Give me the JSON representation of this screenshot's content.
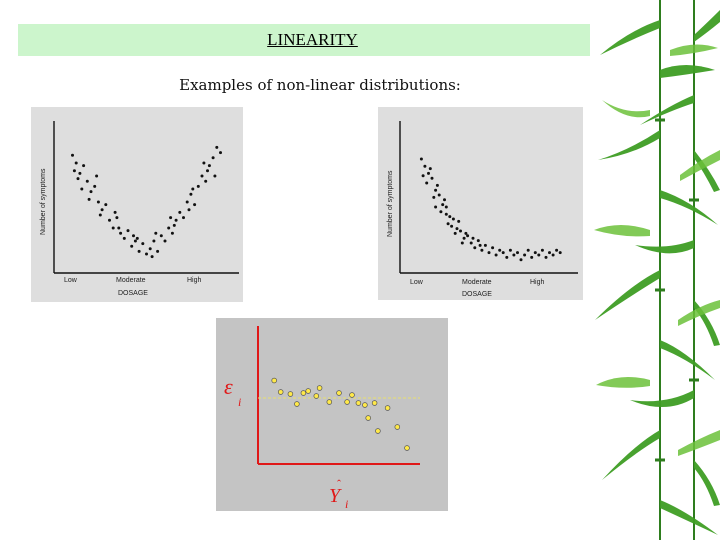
{
  "header": {
    "title": "LINEARITY ",
    "subtitle": "Examples of non-linear distributions:"
  },
  "chart_data": [
    {
      "type": "scatter",
      "ylabel": "Number of symptoms",
      "xlabel": "DOSAGE",
      "x_ticks": [
        "Low",
        "Moderate",
        "High"
      ],
      "shape": "U-shaped",
      "points": [
        [
          0.1,
          0.86
        ],
        [
          0.12,
          0.8
        ],
        [
          0.14,
          0.72
        ],
        [
          0.16,
          0.78
        ],
        [
          0.18,
          0.66
        ],
        [
          0.2,
          0.58
        ],
        [
          0.22,
          0.62
        ],
        [
          0.24,
          0.5
        ],
        [
          0.26,
          0.44
        ],
        [
          0.28,
          0.48
        ],
        [
          0.3,
          0.36
        ],
        [
          0.32,
          0.3
        ],
        [
          0.34,
          0.38
        ],
        [
          0.36,
          0.26
        ],
        [
          0.38,
          0.22
        ],
        [
          0.4,
          0.28
        ],
        [
          0.42,
          0.16
        ],
        [
          0.44,
          0.2
        ],
        [
          0.46,
          0.12
        ],
        [
          0.48,
          0.18
        ],
        [
          0.5,
          0.1
        ],
        [
          0.52,
          0.14
        ],
        [
          0.54,
          0.2
        ],
        [
          0.56,
          0.12
        ],
        [
          0.58,
          0.24
        ],
        [
          0.6,
          0.2
        ],
        [
          0.62,
          0.3
        ],
        [
          0.64,
          0.26
        ],
        [
          0.66,
          0.36
        ],
        [
          0.68,
          0.42
        ],
        [
          0.7,
          0.38
        ],
        [
          0.72,
          0.5
        ],
        [
          0.74,
          0.56
        ],
        [
          0.76,
          0.48
        ],
        [
          0.78,
          0.62
        ],
        [
          0.8,
          0.7
        ],
        [
          0.82,
          0.66
        ],
        [
          0.84,
          0.78
        ],
        [
          0.86,
          0.84
        ],
        [
          0.88,
          0.92
        ],
        [
          0.9,
          0.88
        ],
        [
          0.13,
          0.68
        ],
        [
          0.19,
          0.52
        ],
        [
          0.25,
          0.4
        ],
        [
          0.35,
          0.3
        ],
        [
          0.45,
          0.22
        ],
        [
          0.55,
          0.26
        ],
        [
          0.65,
          0.32
        ],
        [
          0.75,
          0.6
        ],
        [
          0.83,
          0.74
        ],
        [
          0.15,
          0.6
        ],
        [
          0.23,
          0.7
        ],
        [
          0.33,
          0.42
        ],
        [
          0.43,
          0.24
        ],
        [
          0.53,
          0.08
        ],
        [
          0.63,
          0.38
        ],
        [
          0.73,
          0.44
        ],
        [
          0.81,
          0.8
        ],
        [
          0.87,
          0.7
        ],
        [
          0.11,
          0.74
        ]
      ]
    },
    {
      "type": "scatter",
      "ylabel": "Number of symptoms",
      "xlabel": "DOSAGE",
      "x_ticks": [
        "Low",
        "Moderate",
        "High"
      ],
      "shape": "decaying",
      "points": [
        [
          0.12,
          0.9
        ],
        [
          0.14,
          0.84
        ],
        [
          0.16,
          0.78
        ],
        [
          0.15,
          0.7
        ],
        [
          0.18,
          0.74
        ],
        [
          0.2,
          0.64
        ],
        [
          0.19,
          0.58
        ],
        [
          0.22,
          0.6
        ],
        [
          0.24,
          0.52
        ],
        [
          0.23,
          0.46
        ],
        [
          0.26,
          0.5
        ],
        [
          0.28,
          0.42
        ],
        [
          0.27,
          0.36
        ],
        [
          0.3,
          0.4
        ],
        [
          0.32,
          0.32
        ],
        [
          0.31,
          0.28
        ],
        [
          0.34,
          0.3
        ],
        [
          0.36,
          0.24
        ],
        [
          0.35,
          0.2
        ],
        [
          0.38,
          0.26
        ],
        [
          0.4,
          0.2
        ],
        [
          0.42,
          0.16
        ],
        [
          0.44,
          0.22
        ],
        [
          0.46,
          0.14
        ],
        [
          0.48,
          0.18
        ],
        [
          0.5,
          0.12
        ],
        [
          0.52,
          0.16
        ],
        [
          0.54,
          0.1
        ],
        [
          0.56,
          0.14
        ],
        [
          0.58,
          0.12
        ],
        [
          0.6,
          0.08
        ],
        [
          0.62,
          0.14
        ],
        [
          0.64,
          0.1
        ],
        [
          0.66,
          0.12
        ],
        [
          0.68,
          0.06
        ],
        [
          0.7,
          0.1
        ],
        [
          0.72,
          0.14
        ],
        [
          0.74,
          0.08
        ],
        [
          0.76,
          0.12
        ],
        [
          0.78,
          0.1
        ],
        [
          0.8,
          0.14
        ],
        [
          0.82,
          0.08
        ],
        [
          0.84,
          0.12
        ],
        [
          0.86,
          0.1
        ],
        [
          0.88,
          0.14
        ],
        [
          0.9,
          0.12
        ],
        [
          0.17,
          0.82
        ],
        [
          0.21,
          0.68
        ],
        [
          0.25,
          0.56
        ],
        [
          0.29,
          0.34
        ],
        [
          0.33,
          0.38
        ],
        [
          0.37,
          0.28
        ],
        [
          0.41,
          0.24
        ],
        [
          0.45,
          0.18
        ],
        [
          0.13,
          0.76
        ],
        [
          0.2,
          0.5
        ],
        [
          0.26,
          0.44
        ]
      ]
    },
    {
      "type": "scatter",
      "ylabel": "ε_i",
      "xlabel": "Ŷ_i",
      "reference_line": "dashed horizontal at 0",
      "points": [
        [
          0.1,
          0.35
        ],
        [
          0.14,
          0.12
        ],
        [
          0.2,
          0.08
        ],
        [
          0.24,
          -0.12
        ],
        [
          0.28,
          0.1
        ],
        [
          0.31,
          0.14
        ],
        [
          0.36,
          0.04
        ],
        [
          0.38,
          0.2
        ],
        [
          0.44,
          -0.08
        ],
        [
          0.5,
          0.1
        ],
        [
          0.55,
          -0.08
        ],
        [
          0.58,
          0.06
        ],
        [
          0.62,
          -0.1
        ],
        [
          0.66,
          -0.14
        ],
        [
          0.68,
          -0.4
        ],
        [
          0.72,
          -0.1
        ],
        [
          0.74,
          -0.66
        ],
        [
          0.8,
          -0.2
        ],
        [
          0.86,
          -0.58
        ],
        [
          0.92,
          -1.0
        ]
      ]
    }
  ]
}
